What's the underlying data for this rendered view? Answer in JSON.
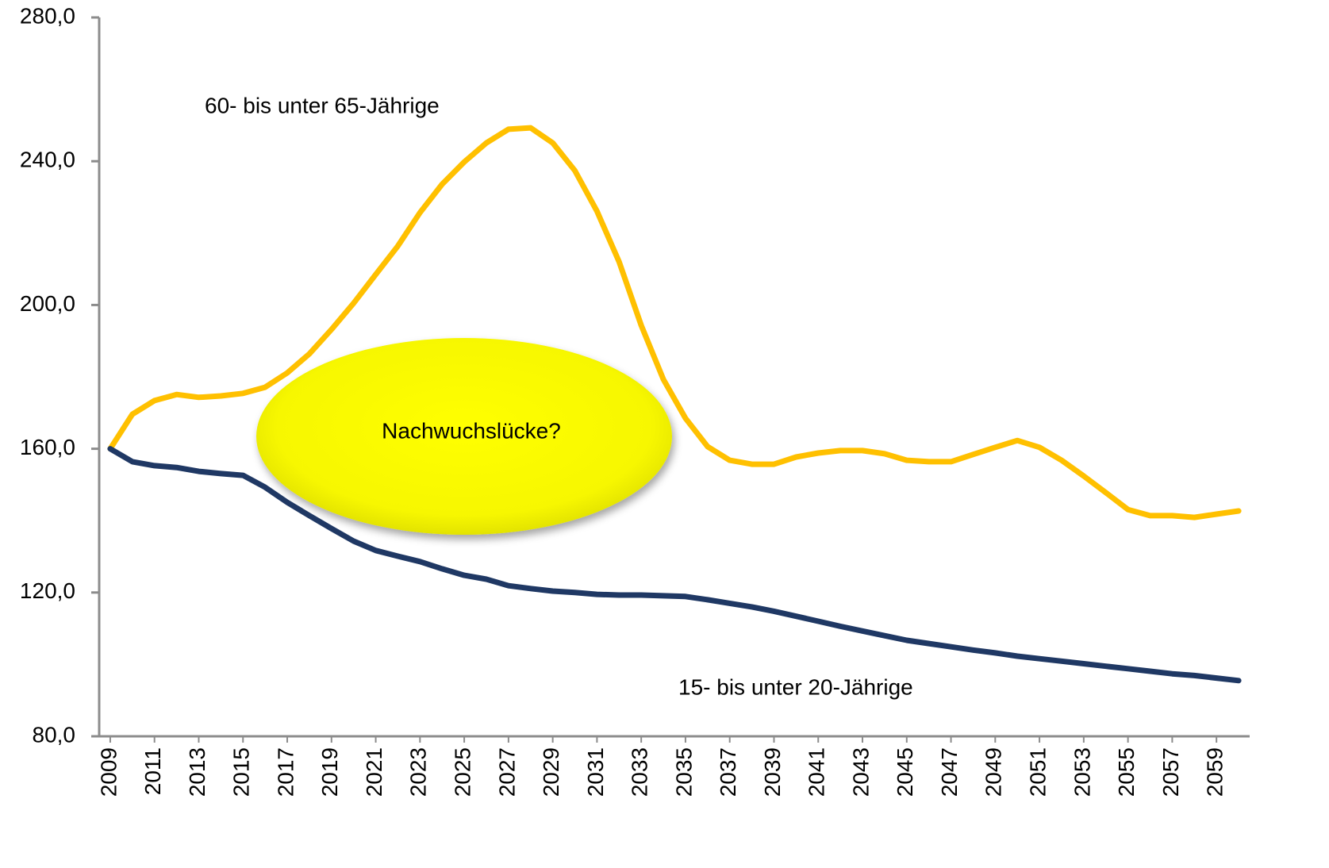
{
  "chart_data": {
    "type": "line",
    "x": [
      2009,
      2010,
      2011,
      2012,
      2013,
      2014,
      2015,
      2016,
      2017,
      2018,
      2019,
      2020,
      2021,
      2022,
      2023,
      2024,
      2025,
      2026,
      2027,
      2028,
      2029,
      2030,
      2031,
      2032,
      2033,
      2034,
      2035,
      2036,
      2037,
      2038,
      2039,
      2040,
      2041,
      2042,
      2043,
      2044,
      2045,
      2046,
      2047,
      2048,
      2049,
      2050,
      2051,
      2052,
      2053,
      2054,
      2055,
      2056,
      2057,
      2058,
      2059,
      2060
    ],
    "xlim": [
      2008.5,
      2060.5
    ],
    "xticks": [
      2009,
      2011,
      2013,
      2015,
      2017,
      2019,
      2021,
      2023,
      2025,
      2027,
      2029,
      2031,
      2033,
      2035,
      2037,
      2039,
      2041,
      2043,
      2045,
      2047,
      2049,
      2051,
      2053,
      2055,
      2057,
      2059
    ],
    "ylim": [
      80,
      280
    ],
    "yticks": [
      {
        "value": 80,
        "label": "80,0"
      },
      {
        "value": 120,
        "label": "120,0"
      },
      {
        "value": 160,
        "label": "160,0"
      },
      {
        "value": 200,
        "label": "200,0"
      },
      {
        "value": 240,
        "label": "240,0"
      },
      {
        "value": 280,
        "label": "280,0"
      }
    ],
    "grid": false,
    "series": [
      {
        "name": "60- bis unter 65-Jährige",
        "color": "#ffc000",
        "values": [
          160,
          169.6,
          173.4,
          175.1,
          174.3,
          174.7,
          175.4,
          177.1,
          181.1,
          186.4,
          193.2,
          200.5,
          208.5,
          216.4,
          225.7,
          233.6,
          239.8,
          245.1,
          248.9,
          249.3,
          245.1,
          237.4,
          226.1,
          212.0,
          194.3,
          179.3,
          168.5,
          160.6,
          156.8,
          155.7,
          155.7,
          157.7,
          158.8,
          159.5,
          159.5,
          158.6,
          156.8,
          156.4,
          156.4,
          158.4,
          160.4,
          162.3,
          160.4,
          156.8,
          152.4,
          147.8,
          143.1,
          141.4,
          141.4,
          140.9,
          141.8,
          142.7
        ]
      },
      {
        "name": "15- bis unter 20-Jährige",
        "color": "#1f3864",
        "values": [
          160,
          156.4,
          155.3,
          154.8,
          153.7,
          153.1,
          152.6,
          149.3,
          145.1,
          141.4,
          137.8,
          134.3,
          131.7,
          130.1,
          128.6,
          126.6,
          124.8,
          123.7,
          121.9,
          121.1,
          120.4,
          120.0,
          119.5,
          119.3,
          119.3,
          119.1,
          118.9,
          118.0,
          117.0,
          116.0,
          114.8,
          113.4,
          112.0,
          110.6,
          109.3,
          108.0,
          106.7,
          105.8,
          104.9,
          104.0,
          103.2,
          102.3,
          101.6,
          100.9,
          100.2,
          99.5,
          98.8,
          98.1,
          97.4,
          96.9,
          96.2,
          95.5
        ]
      }
    ],
    "annotation": "Nachwuchslücke?"
  }
}
